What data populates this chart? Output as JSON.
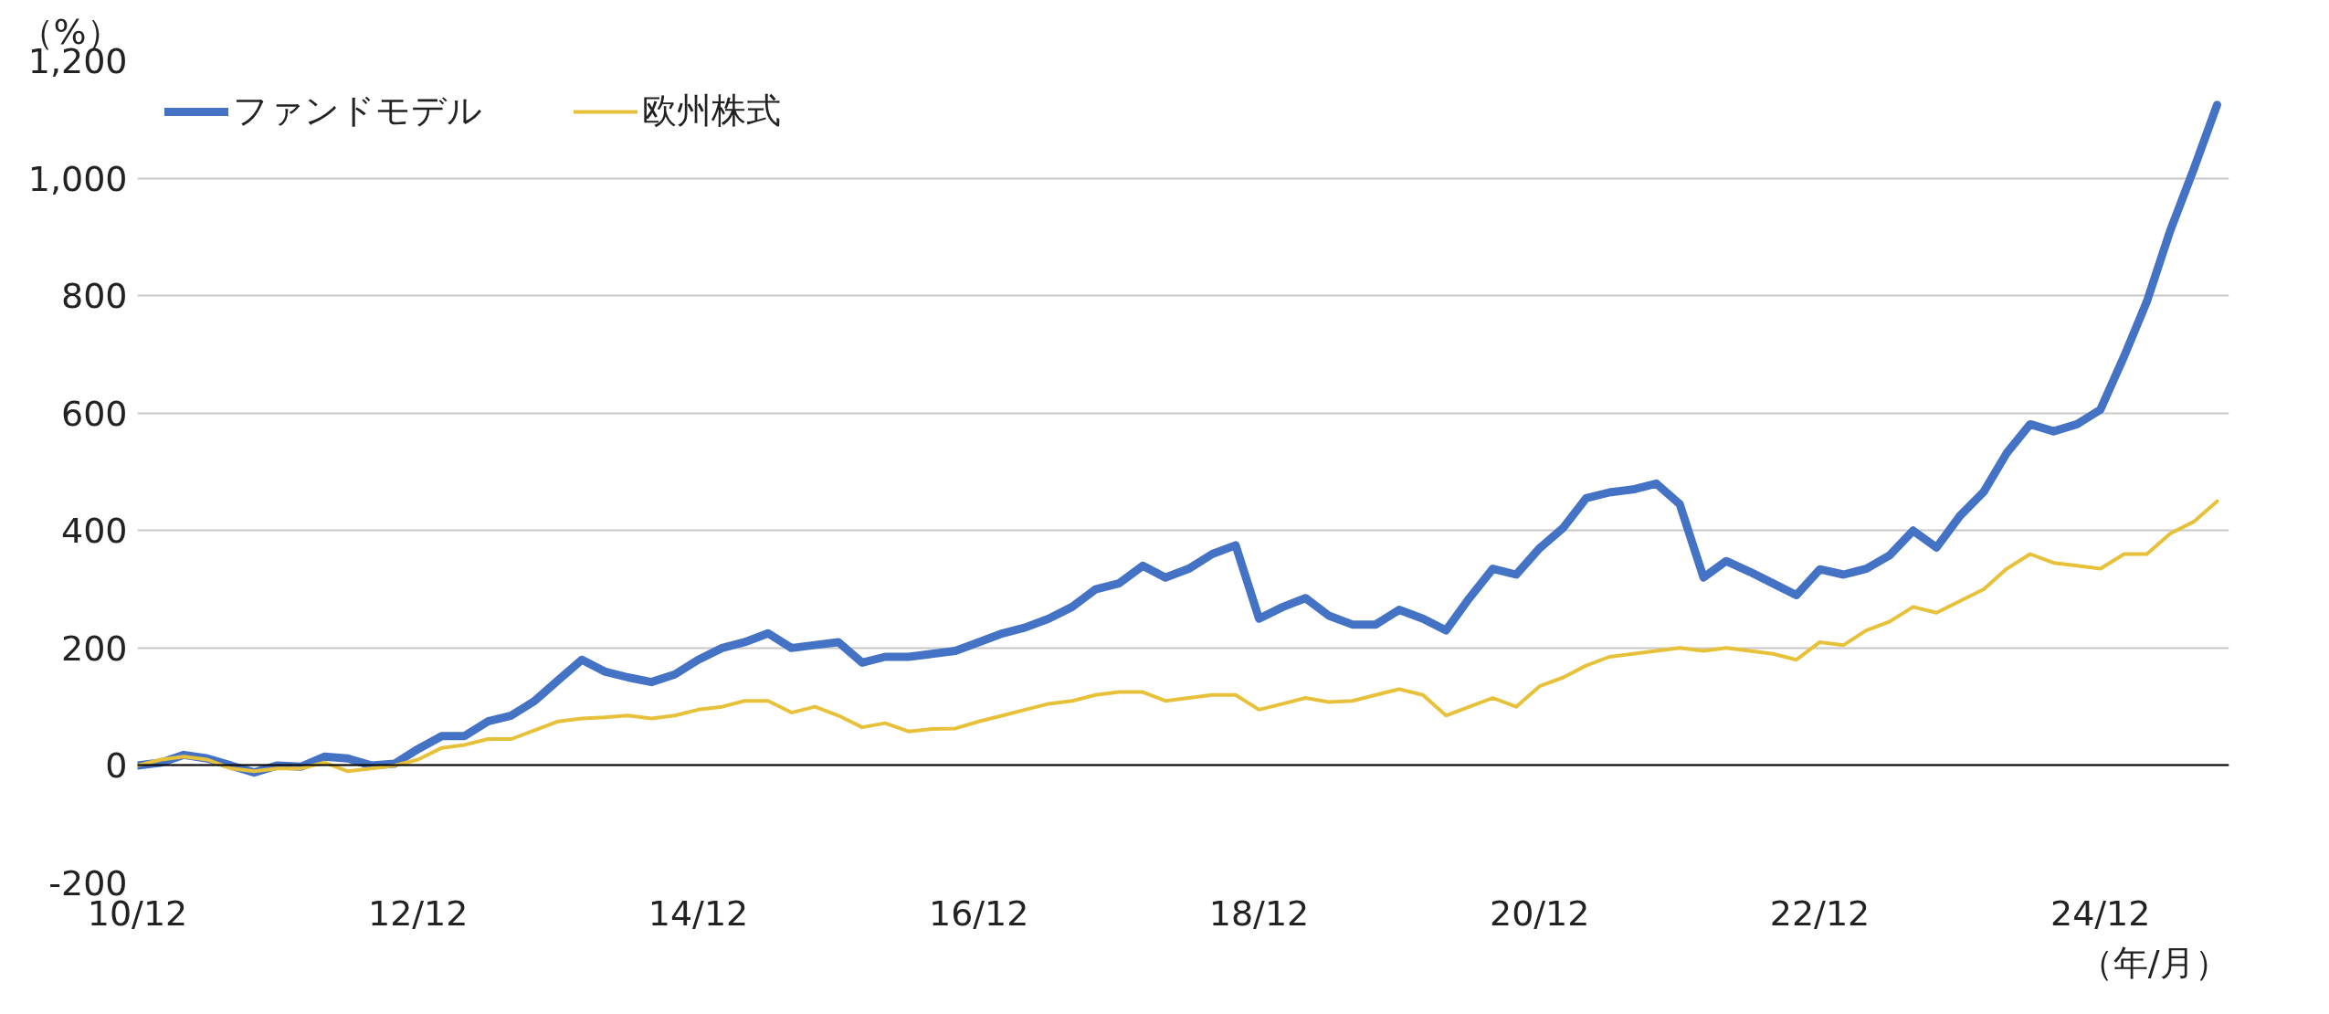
{
  "chart_data": {
    "type": "line",
    "ylabel": "（%）",
    "xlabel": "（年/月）",
    "x": [
      "2010-12",
      "2011-02",
      "2011-04",
      "2011-06",
      "2011-08",
      "2011-10",
      "2011-12",
      "2012-02",
      "2012-04",
      "2012-06",
      "2012-08",
      "2012-10",
      "2012-12",
      "2013-02",
      "2013-04",
      "2013-06",
      "2013-08",
      "2013-10",
      "2013-12",
      "2014-02",
      "2014-04",
      "2014-06",
      "2014-08",
      "2014-10",
      "2014-12",
      "2015-02",
      "2015-04",
      "2015-06",
      "2015-08",
      "2015-10",
      "2015-12",
      "2016-02",
      "2016-04",
      "2016-06",
      "2016-08",
      "2016-10",
      "2016-12",
      "2017-02",
      "2017-04",
      "2017-06",
      "2017-08",
      "2017-10",
      "2017-12",
      "2018-02",
      "2018-04",
      "2018-06",
      "2018-08",
      "2018-10",
      "2018-12",
      "2019-02",
      "2019-04",
      "2019-06",
      "2019-08",
      "2019-10",
      "2019-12",
      "2020-02",
      "2020-04",
      "2020-06",
      "2020-08",
      "2020-10",
      "2020-12",
      "2021-02",
      "2021-04",
      "2021-06",
      "2021-08",
      "2021-10",
      "2021-12",
      "2022-02",
      "2022-04",
      "2022-06",
      "2022-08",
      "2022-10",
      "2022-12",
      "2023-02",
      "2023-04",
      "2023-06",
      "2023-08",
      "2023-10",
      "2023-12",
      "2024-02",
      "2024-04",
      "2024-06",
      "2024-08",
      "2024-10",
      "2024-12",
      "2025-02",
      "2025-04",
      "2025-06",
      "2025-08",
      "2025-10"
    ],
    "series": [
      {
        "name": "ファンドモデル",
        "color": "#4472c4",
        "values": [
          0,
          5,
          18,
          12,
          0,
          -12,
          0,
          -2,
          15,
          12,
          0,
          3,
          28,
          50,
          50,
          75,
          85,
          110,
          145,
          180,
          160,
          150,
          142,
          155,
          180,
          200,
          210,
          225,
          200,
          205,
          210,
          175,
          185,
          185,
          190,
          195,
          210,
          225,
          235,
          250,
          270,
          300,
          310,
          340,
          320,
          335,
          360,
          375,
          250,
          270,
          285,
          255,
          240,
          240,
          265,
          250,
          230,
          285,
          335,
          325,
          370,
          405,
          455,
          465,
          470,
          480,
          445,
          320,
          348,
          330,
          310,
          290,
          334,
          325,
          335,
          358,
          400,
          371,
          425,
          466,
          532,
          581,
          569,
          581,
          606,
          697,
          790,
          911,
          1015,
          1125
        ]
      },
      {
        "name": "欧州株式",
        "color": "#e8c13a",
        "values": [
          0,
          10,
          15,
          10,
          -5,
          -10,
          -5,
          -5,
          5,
          -10,
          -5,
          0,
          10,
          30,
          35,
          45,
          45,
          60,
          75,
          80,
          82,
          85,
          80,
          85,
          95,
          100,
          110,
          110,
          90,
          100,
          85,
          65,
          72,
          58,
          62,
          63,
          75,
          85,
          95,
          105,
          110,
          120,
          125,
          125,
          110,
          115,
          120,
          120,
          95,
          105,
          115,
          108,
          110,
          120,
          130,
          120,
          85,
          100,
          115,
          100,
          135,
          150,
          170,
          185,
          190,
          195,
          200,
          195,
          200,
          195,
          190,
          180,
          210,
          205,
          230,
          245,
          270,
          260,
          280,
          300,
          335,
          360,
          345,
          340,
          335,
          360,
          360,
          395,
          415,
          450
        ]
      }
    ],
    "xlim": [
      "2010-12",
      "2025-11"
    ],
    "xticks": [
      {
        "value": "2010-12",
        "label": "10/12"
      },
      {
        "value": "2012-12",
        "label": "12/12"
      },
      {
        "value": "2014-12",
        "label": "14/12"
      },
      {
        "value": "2016-12",
        "label": "16/12"
      },
      {
        "value": "2018-12",
        "label": "18/12"
      },
      {
        "value": "2020-12",
        "label": "20/12"
      },
      {
        "value": "2022-12",
        "label": "22/12"
      },
      {
        "value": "2024-12",
        "label": "24/12"
      }
    ],
    "ylim": [
      -200,
      1200
    ],
    "yticks": [
      {
        "value": -200,
        "label": "-200"
      },
      0,
      200,
      400,
      600,
      800,
      {
        "value": 1000,
        "label": "1,000"
      },
      {
        "value": 1200,
        "label": "1,200"
      }
    ],
    "grid": "y",
    "legend": "top left",
    "line_style": "solid",
    "marker": "none"
  }
}
